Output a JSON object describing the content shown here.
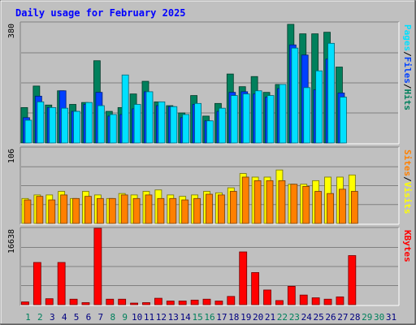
{
  "title": "Daily usage for February 2025",
  "colors": {
    "background": "#c0c0c0",
    "title": "#0000ff",
    "hits": "#00805c",
    "files": "#0040ff",
    "pages": "#00e0ff",
    "visits": "#ffff00",
    "sites": "#ff8000",
    "kbytes": "#ff0000",
    "weekday_label": "#000080",
    "weekend_label": "#00805c"
  },
  "chart_data": [
    {
      "type": "bar",
      "title": "Daily usage for February 2025",
      "categories": [
        "1",
        "2",
        "3",
        "4",
        "5",
        "6",
        "7",
        "8",
        "9",
        "10",
        "11",
        "12",
        "13",
        "14",
        "15",
        "16",
        "17",
        "18",
        "19",
        "20",
        "21",
        "22",
        "23",
        "24",
        "25",
        "26",
        "27",
        "28",
        "29",
        "30",
        "31"
      ],
      "weekend_days": [
        "1",
        "2",
        "8",
        "9",
        "15",
        "16",
        "22",
        "23",
        "29",
        "30"
      ],
      "ymax_label": "380",
      "ylim": [
        0,
        380
      ],
      "right_label": [
        "Pages",
        "/",
        "Files",
        "/",
        "Hits"
      ],
      "series": [
        {
          "name": "Hits",
          "values": [
            112,
            180,
            120,
            165,
            122,
            128,
            260,
            100,
            112,
            155,
            195,
            130,
            118,
            95,
            150,
            85,
            125,
            218,
            178,
            210,
            160,
            185,
            375,
            345,
            345,
            350,
            240,
            0,
            0,
            0,
            0
          ]
        },
        {
          "name": "Files",
          "values": [
            80,
            148,
            112,
            165,
            100,
            122,
            160,
            85,
            90,
            108,
            162,
            118,
            115,
            80,
            122,
            70,
            100,
            160,
            162,
            155,
            145,
            172,
            310,
            278,
            168,
            265,
            158,
            0,
            0,
            0,
            0
          ]
        },
        {
          "name": "Pages",
          "values": [
            72,
            130,
            112,
            110,
            100,
            128,
            118,
            90,
            215,
            122,
            162,
            130,
            115,
            90,
            125,
            70,
            110,
            150,
            155,
            165,
            150,
            185,
            300,
            175,
            228,
            315,
            145,
            0,
            0,
            0,
            0
          ]
        }
      ]
    },
    {
      "type": "bar",
      "categories": [
        "1",
        "2",
        "3",
        "4",
        "5",
        "6",
        "7",
        "8",
        "9",
        "10",
        "11",
        "12",
        "13",
        "14",
        "15",
        "16",
        "17",
        "18",
        "19",
        "20",
        "21",
        "22",
        "23",
        "24",
        "25",
        "26",
        "27",
        "28",
        "29",
        "30",
        "31"
      ],
      "ymax_label": "106",
      "ylim": [
        0,
        106
      ],
      "right_label": [
        "Sites",
        "/",
        "Visits"
      ],
      "series": [
        {
          "name": "Visits",
          "values": [
            35,
            40,
            40,
            45,
            35,
            45,
            40,
            35,
            42,
            40,
            45,
            47,
            40,
            38,
            40,
            45,
            43,
            50,
            70,
            65,
            65,
            75,
            55,
            55,
            60,
            65,
            65,
            68,
            0,
            0,
            0
          ]
        },
        {
          "name": "Sites",
          "values": [
            33,
            38,
            33,
            40,
            35,
            38,
            35,
            35,
            40,
            35,
            40,
            35,
            35,
            33,
            35,
            41,
            40,
            45,
            65,
            60,
            60,
            60,
            55,
            52,
            45,
            42,
            48,
            45,
            0,
            0,
            0
          ]
        }
      ]
    },
    {
      "type": "bar",
      "categories": [
        "1",
        "2",
        "3",
        "4",
        "5",
        "6",
        "7",
        "8",
        "9",
        "10",
        "11",
        "12",
        "13",
        "14",
        "15",
        "16",
        "17",
        "18",
        "19",
        "20",
        "21",
        "22",
        "23",
        "24",
        "25",
        "26",
        "27",
        "28",
        "29",
        "30",
        "31"
      ],
      "ymax_label": "16638",
      "ylim": [
        0,
        16638
      ],
      "right_label": [
        "KBytes"
      ],
      "series": [
        {
          "name": "KBytes",
          "values": [
            600,
            9200,
            1300,
            9200,
            1200,
            450,
            16638,
            1200,
            1200,
            350,
            450,
            1400,
            800,
            800,
            1000,
            1200,
            800,
            1800,
            11500,
            7000,
            3200,
            900,
            4000,
            2100,
            1500,
            1200,
            1700,
            10700,
            0,
            0,
            0
          ]
        }
      ]
    }
  ]
}
